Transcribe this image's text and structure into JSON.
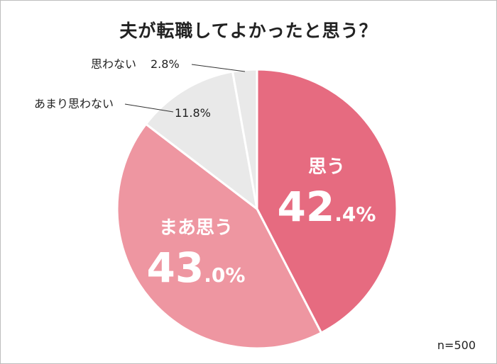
{
  "chart_data": {
    "type": "pie",
    "title": "夫が転職してよかったと思う？",
    "note": "n=500",
    "slices": [
      {
        "label": "思う",
        "value": 42.4,
        "int": "42",
        "dec": ".4%",
        "color": "#e66b80"
      },
      {
        "label": "まあ思う",
        "value": 43.0,
        "int": "43",
        "dec": ".0%",
        "color": "#ee96a1"
      },
      {
        "label": "あまり思わない",
        "value": 11.8,
        "text": "11.8%",
        "color": "#e9e9e9"
      },
      {
        "label": "思わない",
        "value": 2.8,
        "text": "2.8%",
        "color": "#e9e9e9"
      }
    ]
  }
}
